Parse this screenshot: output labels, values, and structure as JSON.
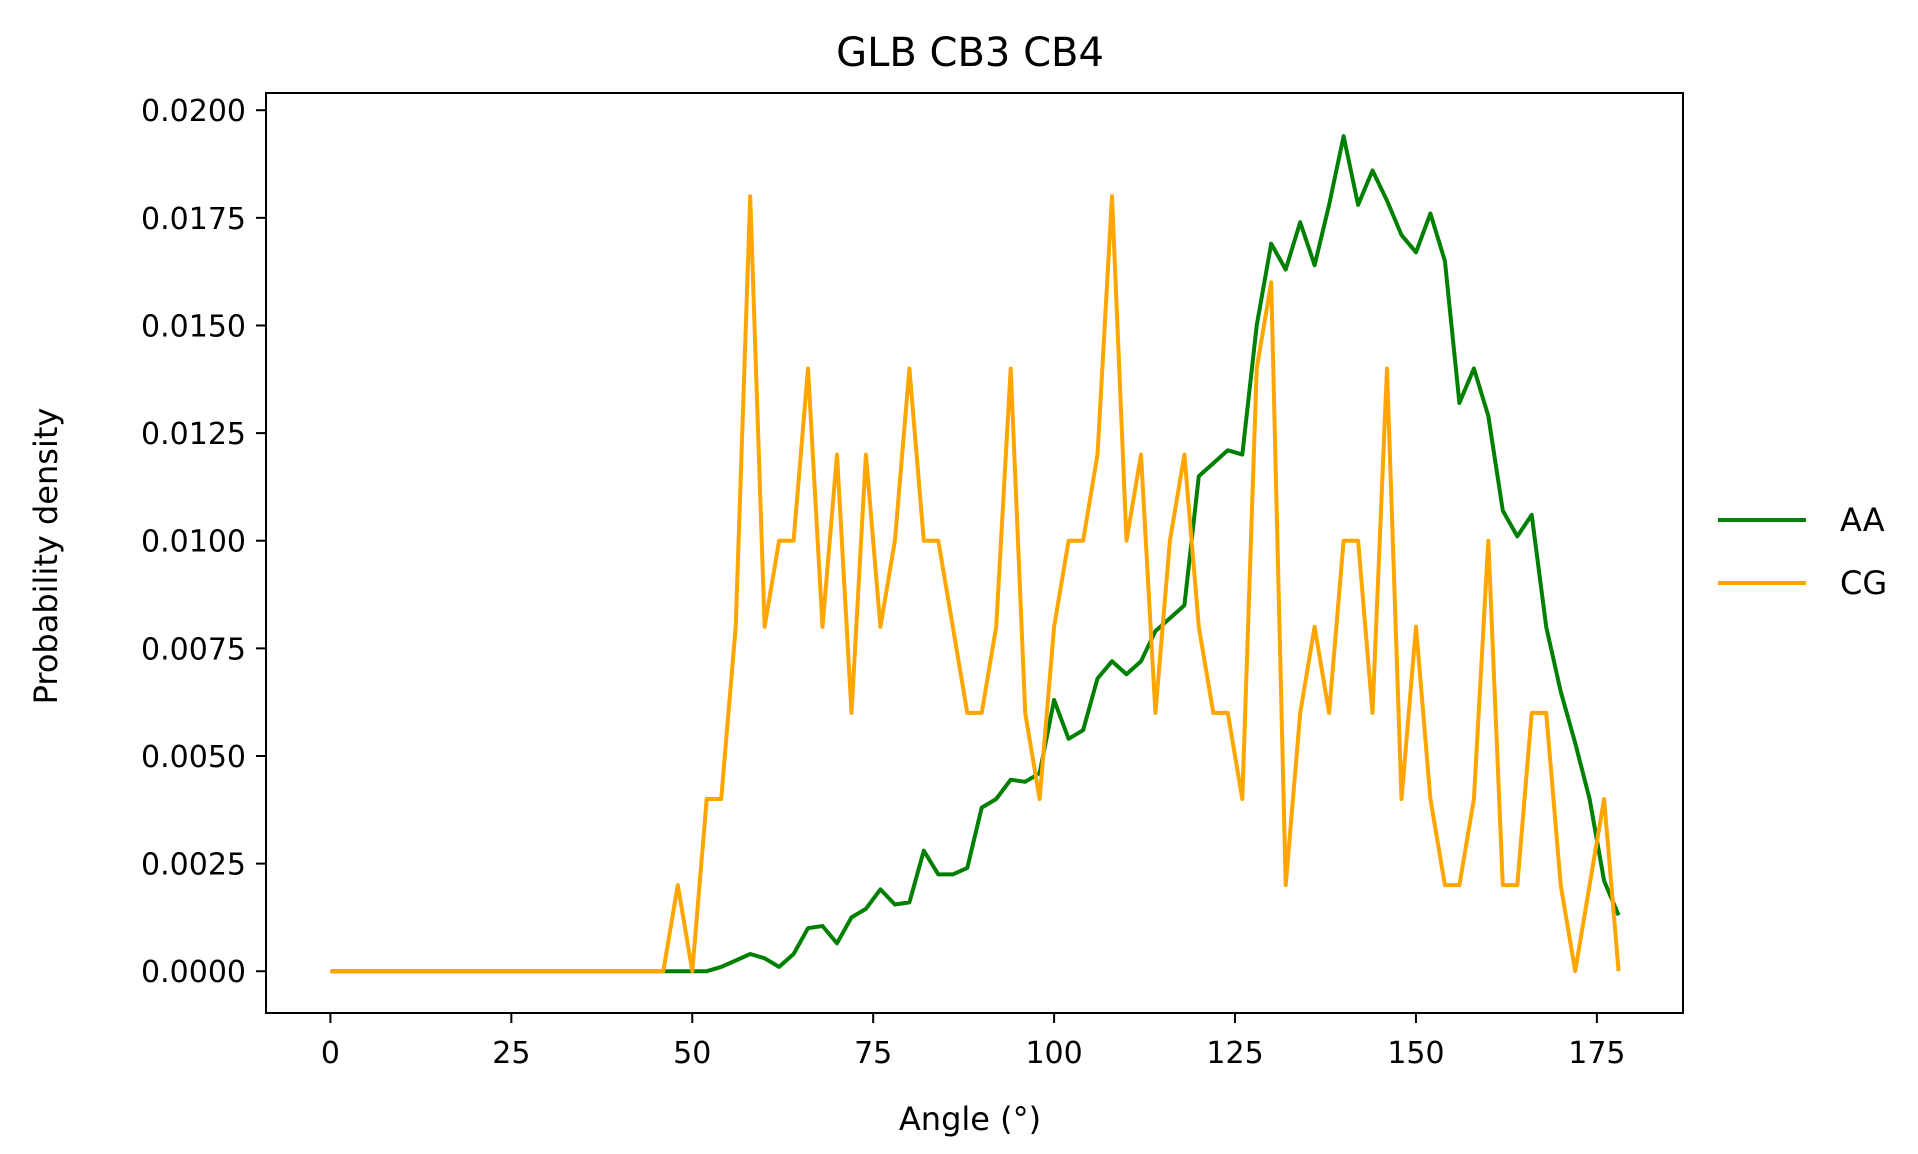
{
  "chart_data": {
    "type": "line",
    "title": "GLB CB3 CB4",
    "xlabel": "Angle (°)",
    "ylabel": "Probability density",
    "xlim": [
      -8.9,
      186.9
    ],
    "ylim": [
      -0.00097,
      0.0204
    ],
    "xticks": [
      0,
      25,
      50,
      75,
      100,
      125,
      150,
      175
    ],
    "xtick_labels": [
      "0",
      "25",
      "50",
      "75",
      "100",
      "125",
      "150",
      "175"
    ],
    "yticks": [
      0,
      0.0025,
      0.005,
      0.0075,
      0.01,
      0.0125,
      0.015,
      0.0175,
      0.02
    ],
    "ytick_labels": [
      "0.0000",
      "0.0025",
      "0.0050",
      "0.0075",
      "0.0100",
      "0.0125",
      "0.0150",
      "0.0175",
      "0.0200"
    ],
    "grid": false,
    "legend_position": "right-outside",
    "x": [
      0,
      2,
      4,
      6,
      8,
      10,
      12,
      14,
      16,
      18,
      20,
      22,
      24,
      26,
      28,
      30,
      32,
      34,
      36,
      38,
      40,
      42,
      44,
      46,
      48,
      50,
      52,
      54,
      56,
      58,
      60,
      62,
      64,
      66,
      68,
      70,
      72,
      74,
      76,
      78,
      80,
      82,
      84,
      86,
      88,
      90,
      92,
      94,
      96,
      98,
      100,
      102,
      104,
      106,
      108,
      110,
      112,
      114,
      116,
      118,
      120,
      122,
      124,
      126,
      128,
      130,
      132,
      134,
      136,
      138,
      140,
      142,
      144,
      146,
      148,
      150,
      152,
      154,
      156,
      158,
      160,
      162,
      164,
      166,
      168,
      170,
      172,
      174,
      176,
      178
    ],
    "series": [
      {
        "name": "AA",
        "color": "#008000",
        "values": [
          0,
          0,
          0,
          0,
          0,
          0,
          0,
          0,
          0,
          0,
          0,
          0,
          0,
          0,
          0,
          0,
          0,
          0,
          0,
          0,
          0,
          0,
          0,
          0,
          0,
          0,
          0,
          0.0001,
          0.00025,
          0.0004,
          0.0003,
          0.0001,
          0.0004,
          0.001,
          0.00105,
          0.00065,
          0.00125,
          0.00145,
          0.0019,
          0.00155,
          0.0016,
          0.0028,
          0.00225,
          0.00225,
          0.0024,
          0.0038,
          0.004,
          0.00445,
          0.0044,
          0.0046,
          0.0063,
          0.0054,
          0.0056,
          0.0068,
          0.0072,
          0.0069,
          0.0072,
          0.0079,
          0.0082,
          0.0085,
          0.0115,
          0.0118,
          0.0121,
          0.012,
          0.015,
          0.0169,
          0.0163,
          0.0174,
          0.0164,
          0.0178,
          0.0194,
          0.0178,
          0.0186,
          0.0179,
          0.0171,
          0.0167,
          0.0176,
          0.0165,
          0.0132,
          0.014,
          0.0129,
          0.0107,
          0.0101,
          0.0106,
          0.008,
          0.0065,
          0.0053,
          0.004,
          0.0021,
          0.0013
        ]
      },
      {
        "name": "CG",
        "color": "#FFA500",
        "values": [
          0,
          0,
          0,
          0,
          0,
          0,
          0,
          0,
          0,
          0,
          0,
          0,
          0,
          0,
          0,
          0,
          0,
          0,
          0,
          0,
          0,
          0,
          0,
          0,
          0.002,
          0,
          0.004,
          0.004,
          0.008,
          0.018,
          0.008,
          0.01,
          0.01,
          0.014,
          0.008,
          0.012,
          0.006,
          0.012,
          0.008,
          0.01,
          0.014,
          0.01,
          0.01,
          0.008,
          0.006,
          0.006,
          0.008,
          0.014,
          0.006,
          0.004,
          0.008,
          0.01,
          0.01,
          0.012,
          0.018,
          0.01,
          0.012,
          0.006,
          0.01,
          0.012,
          0.008,
          0.006,
          0.006,
          0.004,
          0.014,
          0.016,
          0.002,
          0.006,
          0.008,
          0.006,
          0.01,
          0.01,
          0.006,
          0.014,
          0.004,
          0.008,
          0.004,
          0.002,
          0.002,
          0.004,
          0.01,
          0.002,
          0.002,
          0.006,
          0.006,
          0.002,
          0,
          0.002,
          0.004,
          0
        ]
      }
    ]
  }
}
